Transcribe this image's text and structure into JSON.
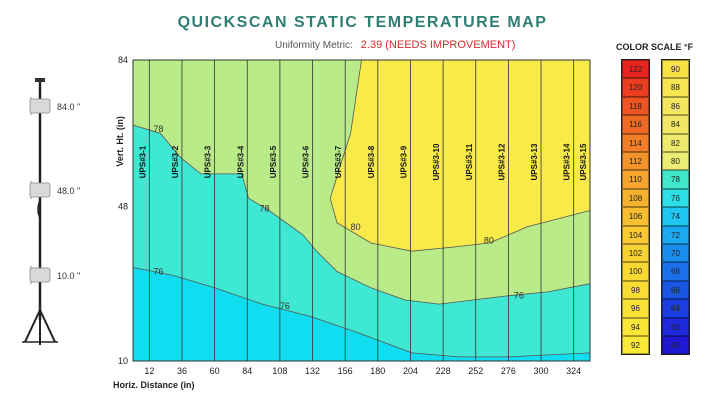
{
  "chart_data": {
    "type": "heatmap",
    "title": "QUICKSCAN STATIC TEMPERATURE MAP",
    "metric_label": "Uniformity Metric:",
    "metric_value": "2.39 (NEEDS IMPROVEMENT)",
    "xlabel": "Horiz. Distance (in)",
    "ylabel": "Vert. Ht. (in)",
    "xlim": [
      0,
      336
    ],
    "ylim": [
      10,
      84
    ],
    "x_ticks": [
      "12",
      "36",
      "60",
      "84",
      "108",
      "132",
      "156",
      "180",
      "204",
      "228",
      "252",
      "276",
      "300",
      "324"
    ],
    "x_tick_values": [
      12,
      36,
      60,
      84,
      108,
      132,
      156,
      180,
      204,
      228,
      252,
      276,
      300,
      324
    ],
    "y_ticks": [
      "10",
      "48",
      "84"
    ],
    "y_tick_values": [
      10,
      48,
      84
    ],
    "sensor_labels": [
      "UPS#3-1",
      "UPS#3-2",
      "UPS#3-3",
      "UPS#3-4",
      "UPS#3-5",
      "UPS#3-6",
      "UPS#3-7",
      "UPS#3-8",
      "UPS#3-9",
      "UPS#3-10",
      "UPS#3-11",
      "UPS#3-12",
      "UPS#3-13",
      "UPS#3-14",
      "UPS#3-15"
    ],
    "sensor_x": [
      12,
      36,
      60,
      84,
      108,
      132,
      156,
      180,
      204,
      228,
      252,
      276,
      300,
      324,
      336
    ],
    "contours": [
      {
        "level": "80",
        "label_x": 160,
        "label_y": 43,
        "points": [
          [
            168,
            84
          ],
          [
            160,
            66
          ],
          [
            145,
            50
          ],
          [
            150,
            44
          ],
          [
            175,
            39
          ],
          [
            205,
            37
          ],
          [
            235,
            38
          ],
          [
            262,
            39
          ],
          [
            290,
            43
          ],
          [
            336,
            47
          ]
        ]
      },
      {
        "level": "78",
        "label_x": 15,
        "label_y": 67,
        "points": [
          [
            0,
            68
          ],
          [
            20,
            66
          ],
          [
            35,
            60
          ],
          [
            50,
            56
          ],
          [
            80,
            56
          ],
          [
            85,
            50
          ],
          [
            100,
            47
          ],
          [
            125,
            41
          ],
          [
            135,
            37
          ],
          [
            150,
            32
          ],
          [
            175,
            28
          ],
          [
            200,
            25
          ],
          [
            225,
            24
          ],
          [
            250,
            25
          ],
          [
            275,
            26
          ],
          [
            305,
            27
          ],
          [
            336,
            29
          ]
        ]
      },
      {
        "level": "76",
        "label_x": 15,
        "label_y": 32,
        "points": [
          [
            0,
            33
          ],
          [
            30,
            31
          ],
          [
            60,
            28
          ],
          [
            95,
            24
          ],
          [
            130,
            21
          ],
          [
            165,
            17
          ],
          [
            205,
            12
          ],
          [
            240,
            11
          ],
          [
            275,
            11
          ],
          [
            336,
            12
          ]
        ]
      }
    ],
    "contour_label_extra": [
      {
        "text": "78",
        "x": 93,
        "y": 47.5
      },
      {
        "text": "80",
        "x": 258,
        "y": 39.6
      },
      {
        "text": "76",
        "x": 108,
        "y": 23.5
      },
      {
        "text": "76",
        "x": 280,
        "y": 26.1
      }
    ],
    "colors": {
      "band_above_80": "#f8ea49",
      "band_78_80": "#b9ec88",
      "band_76_78": "#3fe8d2",
      "band_below_76": "#10def0"
    },
    "color_scale": {
      "title": "COLOR SCALE  °F",
      "warm": [
        {
          "value": "122",
          "color": "#e8241e"
        },
        {
          "value": "120",
          "color": "#eb3d1f"
        },
        {
          "value": "118",
          "color": "#ee5322"
        },
        {
          "value": "116",
          "color": "#f06a25"
        },
        {
          "value": "114",
          "color": "#f27f27"
        },
        {
          "value": "112",
          "color": "#f4932a"
        },
        {
          "value": "110",
          "color": "#f5a52c"
        },
        {
          "value": "108",
          "color": "#f6b32e"
        },
        {
          "value": "106",
          "color": "#f7bf30"
        },
        {
          "value": "104",
          "color": "#f8c932"
        },
        {
          "value": "102",
          "color": "#f8d133"
        },
        {
          "value": "100",
          "color": "#f9d834"
        },
        {
          "value": "98",
          "color": "#f9dd35"
        },
        {
          "value": "96",
          "color": "#f9e236"
        },
        {
          "value": "94",
          "color": "#fae637"
        },
        {
          "value": "92",
          "color": "#fae938"
        }
      ],
      "cool": [
        {
          "value": "90",
          "color": "#f8e243"
        },
        {
          "value": "88",
          "color": "#f6e451"
        },
        {
          "value": "86",
          "color": "#f4e65d"
        },
        {
          "value": "84",
          "color": "#f1e766"
        },
        {
          "value": "82",
          "color": "#eeea6d"
        },
        {
          "value": "80",
          "color": "#ebee72"
        },
        {
          "value": "78",
          "color": "#3ee8c8"
        },
        {
          "value": "76",
          "color": "#2edfe6"
        },
        {
          "value": "74",
          "color": "#20c6f0"
        },
        {
          "value": "72",
          "color": "#1ba9f0"
        },
        {
          "value": "70",
          "color": "#198cee"
        },
        {
          "value": "68",
          "color": "#1a70eb"
        },
        {
          "value": "66",
          "color": "#1b55e6"
        },
        {
          "value": "64",
          "color": "#1c3de0"
        },
        {
          "value": "62",
          "color": "#1d29da"
        },
        {
          "value": "60",
          "color": "#1e18d2"
        }
      ]
    }
  },
  "stand": {
    "heights": [
      "84.0 \"",
      "48.0 \"",
      "10.0 \""
    ],
    "height_values": [
      84,
      48,
      10
    ]
  }
}
